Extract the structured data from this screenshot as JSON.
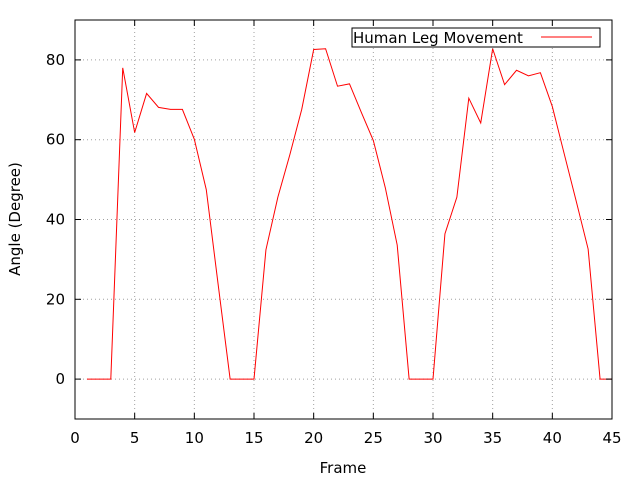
{
  "chart_data": {
    "type": "line",
    "xlabel": "Frame",
    "ylabel": "Angle (Degree)",
    "xlim": [
      0,
      45
    ],
    "ylim": [
      -10,
      90
    ],
    "xticks": [
      0,
      5,
      10,
      15,
      20,
      25,
      30,
      35,
      40,
      45
    ],
    "yticks": [
      0,
      20,
      40,
      60,
      80
    ],
    "grid": true,
    "legend_position": "top-right",
    "series": [
      {
        "name": "Human Leg Movement",
        "color": "#ff0000",
        "x": [
          1,
          2,
          3,
          4,
          5,
          6,
          7,
          8,
          9,
          10,
          11,
          12,
          13,
          14,
          15,
          16,
          17,
          18,
          19,
          20,
          21,
          22,
          23,
          24,
          25,
          26,
          27,
          28,
          29,
          30,
          31,
          32,
          33,
          34,
          35,
          36,
          37,
          38,
          39,
          40,
          41,
          42,
          43,
          44,
          45
        ],
        "y": [
          0,
          0,
          0,
          78,
          61.8,
          71.6,
          68.1,
          67.6,
          67.6,
          60.1,
          47.5,
          23.6,
          0,
          0,
          0,
          32.4,
          45.6,
          56.2,
          67.6,
          82.6,
          82.8,
          73.4,
          74,
          66.8,
          59.8,
          48,
          33.6,
          0,
          0,
          0,
          36.4,
          45.6,
          70.4,
          64.2,
          82.8,
          73.8,
          77.4,
          76,
          76.8,
          68.3,
          56.4,
          44.6,
          32.6,
          0,
          0
        ]
      }
    ]
  }
}
